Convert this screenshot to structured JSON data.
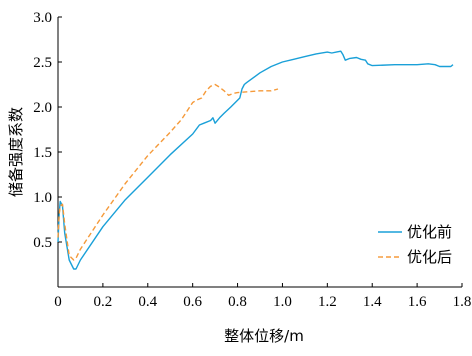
{
  "chart_data": {
    "type": "line",
    "xlabel": "整体位移/m",
    "ylabel": "储备强度系数",
    "xlim": [
      0,
      1.8
    ],
    "ylim": [
      0.0,
      3.0
    ],
    "x_ticks": [
      "0",
      "0.2",
      "0.4",
      "0.6",
      "0.8",
      "1.0",
      "1.2",
      "1.4",
      "1.6",
      "1.8"
    ],
    "y_ticks": [
      "0.5",
      "1.0",
      "1.5",
      "2.0",
      "2.5",
      "3.0"
    ],
    "legend_position": "right",
    "series": [
      {
        "name": "优化前",
        "color": "#1aa0d8",
        "style": "solid",
        "x": [
          0.0,
          0.005,
          0.01,
          0.02,
          0.03,
          0.05,
          0.07,
          0.08,
          0.1,
          0.2,
          0.3,
          0.4,
          0.5,
          0.6,
          0.63,
          0.65,
          0.68,
          0.69,
          0.7,
          0.72,
          0.74,
          0.77,
          0.79,
          0.81,
          0.82,
          0.83,
          0.84,
          0.9,
          0.95,
          1.0,
          1.05,
          1.1,
          1.15,
          1.2,
          1.22,
          1.24,
          1.26,
          1.27,
          1.28,
          1.3,
          1.33,
          1.35,
          1.37,
          1.38,
          1.4,
          1.5,
          1.6,
          1.65,
          1.68,
          1.7,
          1.72,
          1.75,
          1.76
        ],
        "y": [
          0.5,
          0.8,
          0.95,
          0.9,
          0.6,
          0.3,
          0.2,
          0.2,
          0.3,
          0.67,
          0.97,
          1.22,
          1.47,
          1.7,
          1.8,
          1.82,
          1.85,
          1.88,
          1.82,
          1.88,
          1.93,
          2.0,
          2.05,
          2.1,
          2.2,
          2.25,
          2.27,
          2.38,
          2.45,
          2.5,
          2.53,
          2.56,
          2.59,
          2.61,
          2.6,
          2.61,
          2.62,
          2.58,
          2.52,
          2.54,
          2.55,
          2.53,
          2.52,
          2.48,
          2.46,
          2.47,
          2.47,
          2.48,
          2.47,
          2.45,
          2.45,
          2.45,
          2.47
        ]
      },
      {
        "name": "优化后",
        "color": "#f59a3a",
        "style": "dashed",
        "x": [
          0.0,
          0.005,
          0.01,
          0.02,
          0.03,
          0.05,
          0.07,
          0.08,
          0.1,
          0.2,
          0.3,
          0.4,
          0.5,
          0.55,
          0.6,
          0.62,
          0.64,
          0.66,
          0.68,
          0.7,
          0.72,
          0.74,
          0.76,
          0.78,
          0.8,
          0.85,
          0.9,
          0.95,
          0.98
        ],
        "y": [
          0.55,
          0.8,
          0.9,
          0.92,
          0.7,
          0.35,
          0.3,
          0.32,
          0.42,
          0.8,
          1.15,
          1.46,
          1.72,
          1.86,
          2.05,
          2.08,
          2.1,
          2.18,
          2.23,
          2.25,
          2.22,
          2.18,
          2.13,
          2.15,
          2.16,
          2.17,
          2.18,
          2.18,
          2.2
        ]
      }
    ]
  }
}
